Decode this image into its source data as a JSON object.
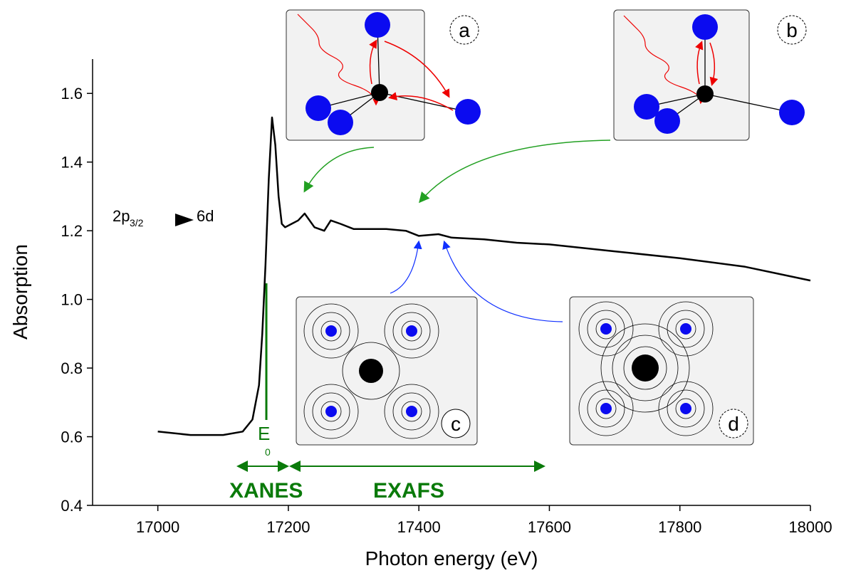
{
  "chart_data": {
    "type": "line",
    "x_label": "Photon energy (eV)",
    "y_label": "Absorption",
    "xlim": [
      16900,
      18000
    ],
    "ylim": [
      0.4,
      1.7
    ],
    "xticks": [
      17000,
      17200,
      17400,
      17600,
      17800,
      18000
    ],
    "yticks": [
      0.4,
      0.6,
      0.8,
      {
        "value": 1,
        "label": "1.0"
      },
      1.2,
      1.4,
      1.6
    ],
    "series": [
      {
        "color": "#000000",
        "x": [
          17000,
          17050,
          17100,
          17130,
          17145,
          17155,
          17160,
          17165,
          17170,
          17175,
          17180,
          17185,
          17190,
          17195,
          17205,
          17215,
          17225,
          17240,
          17255,
          17265,
          17280,
          17300,
          17350,
          17380,
          17400,
          17430,
          17450,
          17500,
          17550,
          17600,
          17700,
          17800,
          17900,
          18000
        ],
        "values": [
          0.615,
          0.605,
          0.605,
          0.615,
          0.65,
          0.75,
          0.9,
          1.1,
          1.35,
          1.53,
          1.45,
          1.3,
          1.22,
          1.21,
          1.22,
          1.23,
          1.25,
          1.21,
          1.2,
          1.23,
          1.22,
          1.205,
          1.205,
          1.2,
          1.185,
          1.19,
          1.18,
          1.175,
          1.165,
          1.16,
          1.14,
          1.12,
          1.095,
          1.055
        ]
      }
    ],
    "annotations": {
      "transition_from": "2p",
      "transition_sub": "3/2",
      "transition_to": "6d",
      "edge": "E",
      "edge_sub": "0",
      "xanes": "XANES",
      "exafs": "EXAFS",
      "inset_a": "a",
      "inset_b": "b",
      "inset_c": "c",
      "inset_d": "d"
    }
  }
}
